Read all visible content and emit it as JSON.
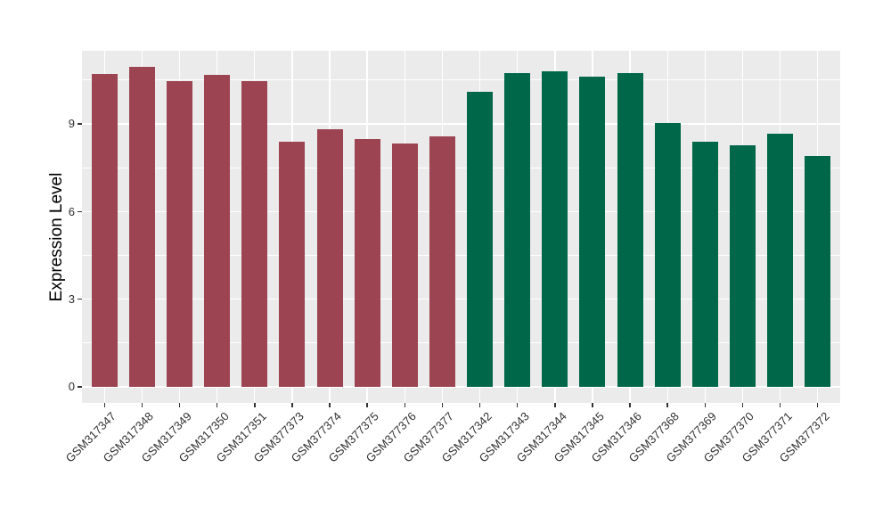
{
  "figure": {
    "background": "#FFFFFF",
    "panel_background": "#EBEBEB",
    "grid_color": "#FFFFFF",
    "tick_mark_color": "#333333",
    "tick_label_color": "#303030",
    "axis_title_color": "#1A1A1A",
    "group_colors": {
      "left_group": "#9C4451",
      "right_group": "#006849"
    }
  },
  "chart_data": {
    "type": "bar",
    "title": "",
    "xlabel": "",
    "ylabel": "Expression Level",
    "legend": "none",
    "grid": true,
    "categories": [
      "GSM317347",
      "GSM317348",
      "GSM317349",
      "GSM317350",
      "GSM317351",
      "GSM377373",
      "GSM377374",
      "GSM377375",
      "GSM377376",
      "GSM377377",
      "GSM317342",
      "GSM317343",
      "GSM317344",
      "GSM317345",
      "GSM317346",
      "GSM377368",
      "GSM377369",
      "GSM377370",
      "GSM377371",
      "GSM377372"
    ],
    "values": [
      10.72,
      10.96,
      10.47,
      10.69,
      10.47,
      8.39,
      8.81,
      8.48,
      8.33,
      8.57,
      10.09,
      10.73,
      10.79,
      10.62,
      10.74,
      9.03,
      8.4,
      8.26,
      8.66,
      7.9
    ],
    "bar_colors": [
      "#9C4451",
      "#9C4451",
      "#9C4451",
      "#9C4451",
      "#9C4451",
      "#9C4451",
      "#9C4451",
      "#9C4451",
      "#9C4451",
      "#9C4451",
      "#006849",
      "#006849",
      "#006849",
      "#006849",
      "#006849",
      "#006849",
      "#006849",
      "#006849",
      "#006849",
      "#006849"
    ],
    "yticks": [
      0,
      3,
      6,
      9
    ],
    "yticks_minor": [
      1.5,
      4.5,
      7.5,
      10.5
    ],
    "ylim": [
      -0.55,
      11.5
    ]
  }
}
